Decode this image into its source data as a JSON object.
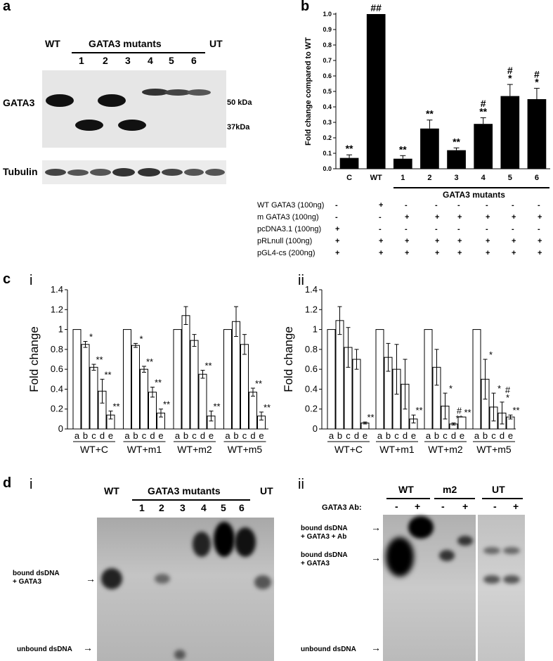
{
  "panel_a": {
    "letter": "a",
    "wt": "WT",
    "mutants_label": "GATA3 mutants",
    "ut": "UT",
    "lanes": [
      "1",
      "2",
      "3",
      "4",
      "5",
      "6"
    ],
    "row_gata3": "GATA3",
    "row_tubulin": "Tubulin",
    "mw_50": "50 kDa",
    "mw_37": "37kDa"
  },
  "panel_b": {
    "letter": "b",
    "mutants_label": "GATA3 mutants",
    "table_rows": [
      {
        "label": "WT GATA3 (100ng)",
        "values": [
          "-",
          "+",
          "-",
          "-",
          "-",
          "-",
          "-",
          "-"
        ]
      },
      {
        "label": "m GATA3 (100ng)",
        "values": [
          "-",
          "-",
          "+",
          "+",
          "+",
          "+",
          "+",
          "+"
        ]
      },
      {
        "label": "pcDNA3.1 (100ng)",
        "values": [
          "+",
          "-",
          "-",
          "-",
          "-",
          "-",
          "-",
          "-"
        ]
      },
      {
        "label": "pRLnull (100ng)",
        "values": [
          "+",
          "+",
          "+",
          "+",
          "+",
          "+",
          "+",
          "+"
        ]
      },
      {
        "label": "pGL4-cs (200ng)",
        "values": [
          "+",
          "+",
          "+",
          "+",
          "+",
          "+",
          "+",
          "+"
        ]
      }
    ]
  },
  "panel_c": {
    "letter": "c",
    "i": "i",
    "ii": "ii"
  },
  "panel_d": {
    "letter": "d",
    "i": "i",
    "ii": "ii",
    "wt": "WT",
    "mutants_label": "GATA3 mutants",
    "ut": "UT",
    "lanes": [
      "1",
      "2",
      "3",
      "4",
      "5",
      "6"
    ],
    "bound": "bound dsDNA\n+ GATA3",
    "bound_ab": "bound dsDNA\n+ GATA3 + Ab",
    "unbound": "unbound dsDNA",
    "ii_groups": [
      "WT",
      "m2",
      "UT"
    ],
    "ab_label": "GATA3 Ab:",
    "ab_signs": [
      "-",
      "+",
      "-",
      "+",
      "-",
      "+"
    ]
  },
  "chart_data": [
    {
      "id": "b",
      "type": "bar",
      "categories": [
        "C",
        "WT",
        "1",
        "2",
        "3",
        "4",
        "5",
        "6"
      ],
      "values": [
        0.07,
        1.0,
        0.065,
        0.26,
        0.12,
        0.29,
        0.47,
        0.45
      ],
      "errors": [
        0.02,
        0,
        0.02,
        0.055,
        0.015,
        0.04,
        0.075,
        0.07
      ],
      "annotations": [
        "**",
        "##",
        "**",
        "**",
        "**",
        "#\n**",
        "#\n*",
        "#\n*"
      ],
      "ylabel": "Fold change compared to WT",
      "ylim": [
        0,
        1.0
      ],
      "yticks": [
        "0.0",
        "0.1",
        "0.2",
        "0.3",
        "0.4",
        "0.5",
        "0.6",
        "0.7",
        "0.8",
        "0.9",
        "1.0"
      ],
      "color": "#000000"
    },
    {
      "id": "c-i",
      "type": "bar",
      "ylabel": "Fold change",
      "ylim": [
        0,
        1.4
      ],
      "yticks": [
        "0",
        "0.2",
        "0.4",
        "0.6",
        "0.8",
        "1",
        "1.2",
        "1.4"
      ],
      "bar_labels": [
        "a",
        "b",
        "c",
        "d",
        "e"
      ],
      "groups": [
        {
          "name": "WT+C",
          "values": [
            1.0,
            0.85,
            0.62,
            0.38,
            0.14
          ],
          "errors": [
            0,
            0.03,
            0.03,
            0.12,
            0.04
          ],
          "annotations": [
            "",
            "*",
            "**",
            "**",
            "**"
          ]
        },
        {
          "name": "WT+m1",
          "values": [
            1.0,
            0.84,
            0.6,
            0.37,
            0.16
          ],
          "errors": [
            0,
            0.02,
            0.03,
            0.05,
            0.04
          ],
          "annotations": [
            "",
            "*",
            "**",
            "**",
            "**"
          ]
        },
        {
          "name": "WT+m2",
          "values": [
            1.0,
            1.14,
            0.89,
            0.55,
            0.13
          ],
          "errors": [
            0,
            0.09,
            0.06,
            0.04,
            0.05
          ],
          "annotations": [
            "",
            "",
            "",
            "**",
            "**"
          ]
        },
        {
          "name": "WT+m5",
          "values": [
            1.0,
            1.08,
            0.85,
            0.37,
            0.13
          ],
          "errors": [
            0,
            0.15,
            0.1,
            0.04,
            0.04
          ],
          "annotations": [
            "",
            "",
            "",
            "**",
            "**"
          ]
        }
      ]
    },
    {
      "id": "c-ii",
      "type": "bar",
      "ylabel": "Fold change",
      "ylim": [
        0,
        1.4
      ],
      "yticks": [
        "0",
        "0.2",
        "0.4",
        "0.6",
        "0.8",
        "1",
        "1.2",
        "1.4"
      ],
      "bar_labels": [
        "a",
        "b",
        "c",
        "d",
        "e"
      ],
      "groups": [
        {
          "name": "WT+C",
          "values": [
            1.0,
            1.09,
            0.82,
            0.7,
            0.06
          ],
          "errors": [
            0,
            0.14,
            0.2,
            0.1,
            0.01
          ],
          "annotations": [
            "",
            "",
            "",
            "",
            "**"
          ]
        },
        {
          "name": "WT+m1",
          "values": [
            1.0,
            0.72,
            0.6,
            0.45,
            0.1
          ],
          "errors": [
            0,
            0.14,
            0.25,
            0.25,
            0.04
          ],
          "annotations": [
            "",
            "",
            "",
            "",
            "**"
          ]
        },
        {
          "name": "WT+m2",
          "values": [
            1.0,
            0.62,
            0.23,
            0.05,
            0.12
          ],
          "errors": [
            0,
            0.18,
            0.13,
            0.01,
            0.0
          ],
          "annotations": [
            "",
            "",
            "*",
            "#\n**",
            "**"
          ]
        },
        {
          "name": "WT+m5",
          "values": [
            1.0,
            0.5,
            0.22,
            0.16,
            0.12
          ],
          "errors": [
            0,
            0.2,
            0.14,
            0.11,
            0.02
          ],
          "annotations": [
            "",
            "*",
            "*",
            "#\n*",
            "**"
          ]
        }
      ]
    }
  ]
}
